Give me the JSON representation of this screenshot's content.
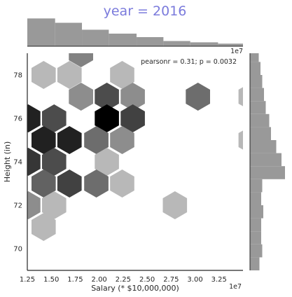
{
  "chart_data": {
    "type": "hexbin",
    "title": "year = 2016",
    "xlabel": "Salary (* $10,000,000)",
    "ylabel": "Height (in)",
    "x_exponent_label": "1e7",
    "xlim": [
      1.25,
      3.5
    ],
    "ylim": [
      69,
      79
    ],
    "x_ticks": [
      "1.25",
      "1.50",
      "1.75",
      "2.00",
      "2.25",
      "2.50",
      "2.75",
      "3.00",
      "3.25"
    ],
    "y_ticks": [
      "70",
      "72",
      "74",
      "76",
      "78"
    ],
    "annotation": "pearsonr = 0.31; p = 0.0032",
    "hexbins": [
      {
        "x": 1.81,
        "y": 79.0,
        "density": 0.4
      },
      {
        "x": 1.42,
        "y": 78.0,
        "density": 0.15
      },
      {
        "x": 1.69,
        "y": 78.0,
        "density": 0.15
      },
      {
        "x": 2.24,
        "y": 78.0,
        "density": 0.15
      },
      {
        "x": 1.81,
        "y": 77.0,
        "density": 0.35
      },
      {
        "x": 2.08,
        "y": 77.0,
        "density": 0.65
      },
      {
        "x": 2.35,
        "y": 77.0,
        "density": 0.35
      },
      {
        "x": 3.03,
        "y": 77.0,
        "density": 0.5
      },
      {
        "x": 3.58,
        "y": 77.0,
        "density": 0.15
      },
      {
        "x": 1.26,
        "y": 76.0,
        "density": 0.85
      },
      {
        "x": 1.53,
        "y": 76.0,
        "density": 0.65
      },
      {
        "x": 2.08,
        "y": 76.0,
        "density": 1.0
      },
      {
        "x": 2.35,
        "y": 76.0,
        "density": 0.7
      },
      {
        "x": 1.42,
        "y": 75.0,
        "density": 0.85
      },
      {
        "x": 1.69,
        "y": 75.0,
        "density": 0.85
      },
      {
        "x": 1.97,
        "y": 75.0,
        "density": 0.5
      },
      {
        "x": 2.24,
        "y": 75.0,
        "density": 0.35
      },
      {
        "x": 3.58,
        "y": 75.0,
        "density": 0.15
      },
      {
        "x": 1.26,
        "y": 74.0,
        "density": 0.75
      },
      {
        "x": 1.53,
        "y": 74.0,
        "density": 0.65
      },
      {
        "x": 2.08,
        "y": 74.0,
        "density": 0.15
      },
      {
        "x": 1.42,
        "y": 73.0,
        "density": 0.55
      },
      {
        "x": 1.69,
        "y": 73.0,
        "density": 0.7
      },
      {
        "x": 1.97,
        "y": 73.0,
        "density": 0.5
      },
      {
        "x": 2.24,
        "y": 73.0,
        "density": 0.15
      },
      {
        "x": 1.26,
        "y": 72.0,
        "density": 0.35
      },
      {
        "x": 1.53,
        "y": 72.0,
        "density": 0.15
      },
      {
        "x": 2.79,
        "y": 72.0,
        "density": 0.15
      },
      {
        "x": 1.42,
        "y": 71.0,
        "density": 0.15
      }
    ],
    "x_marginal_hist": [
      {
        "bin": [
          1.25,
          1.54
        ],
        "height": 0.64
      },
      {
        "bin": [
          1.54,
          1.82
        ],
        "height": 0.54
      },
      {
        "bin": [
          1.82,
          2.1
        ],
        "height": 0.38
      },
      {
        "bin": [
          2.1,
          2.39
        ],
        "height": 0.29
      },
      {
        "bin": [
          2.39,
          2.67
        ],
        "height": 0.21
      },
      {
        "bin": [
          2.67,
          2.95
        ],
        "height": 0.12
      },
      {
        "bin": [
          2.95,
          3.24
        ],
        "height": 0.09
      },
      {
        "bin": [
          3.24,
          3.52
        ],
        "height": 0.06
      }
    ],
    "y_marginal_hist": [
      {
        "bin": [
          69.0,
          69.6
        ],
        "width": 0.27
      },
      {
        "bin": [
          69.6,
          70.2
        ],
        "width": 0.35
      },
      {
        "bin": [
          70.2,
          70.8
        ],
        "width": 0.32
      },
      {
        "bin": [
          70.8,
          71.4
        ],
        "width": 0.32
      },
      {
        "bin": [
          71.4,
          72.0
        ],
        "width": 0.38
      },
      {
        "bin": [
          72.0,
          72.6
        ],
        "width": 0.32
      },
      {
        "bin": [
          72.6,
          73.2
        ],
        "width": 0.35
      },
      {
        "bin": [
          73.2,
          73.8
        ],
        "width": 1.0
      },
      {
        "bin": [
          73.8,
          74.4
        ],
        "width": 0.9
      },
      {
        "bin": [
          74.4,
          75.0
        ],
        "width": 0.75
      },
      {
        "bin": [
          75.0,
          75.6
        ],
        "width": 0.6
      },
      {
        "bin": [
          75.6,
          76.2
        ],
        "width": 0.55
      },
      {
        "bin": [
          76.2,
          76.8
        ],
        "width": 0.45
      },
      {
        "bin": [
          76.8,
          77.4
        ],
        "width": 0.4
      },
      {
        "bin": [
          77.4,
          78.0
        ],
        "width": 0.35
      },
      {
        "bin": [
          78.0,
          78.6
        ],
        "width": 0.3
      },
      {
        "bin": [
          78.6,
          79.0
        ],
        "width": 0.25
      }
    ],
    "colors": {
      "title": "#7b7bdc",
      "hist_fill": "#999999",
      "hex_max": "#000000",
      "hex_min": "#d9d9d9",
      "axis": "#262626"
    }
  }
}
